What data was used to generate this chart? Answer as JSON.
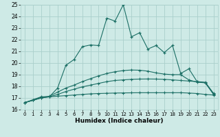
{
  "xlabel": "Humidex (Indice chaleur)",
  "xlim": [
    -0.5,
    23.5
  ],
  "ylim": [
    16,
    25
  ],
  "xticks": [
    0,
    1,
    2,
    3,
    4,
    5,
    6,
    7,
    8,
    9,
    10,
    11,
    12,
    13,
    14,
    15,
    16,
    17,
    18,
    19,
    20,
    21,
    22,
    23
  ],
  "yticks": [
    16,
    17,
    18,
    19,
    20,
    21,
    22,
    23,
    24,
    25
  ],
  "bg_color": "#ceeae6",
  "grid_color": "#aacfcb",
  "line_color": "#1a6e64",
  "line1_x": [
    0,
    1,
    2,
    3,
    4,
    5,
    6,
    7,
    8,
    9,
    10,
    11,
    12,
    13,
    14,
    15,
    16,
    17,
    18,
    19,
    20,
    21,
    22,
    23
  ],
  "line1_y": [
    16.6,
    16.8,
    17.0,
    17.1,
    17.15,
    17.2,
    17.25,
    17.3,
    17.35,
    17.38,
    17.4,
    17.42,
    17.43,
    17.44,
    17.45,
    17.45,
    17.45,
    17.45,
    17.45,
    17.45,
    17.42,
    17.38,
    17.3,
    17.25
  ],
  "line2_x": [
    0,
    1,
    2,
    3,
    4,
    5,
    6,
    7,
    8,
    9,
    10,
    11,
    12,
    13,
    14,
    15,
    16,
    17,
    18,
    19,
    20,
    21,
    22,
    23
  ],
  "line2_y": [
    16.6,
    16.8,
    17.0,
    17.1,
    17.3,
    17.55,
    17.75,
    17.95,
    18.1,
    18.25,
    18.4,
    18.5,
    18.55,
    18.6,
    18.62,
    18.63,
    18.62,
    18.6,
    18.55,
    18.5,
    18.45,
    18.4,
    18.35,
    17.4
  ],
  "line3_x": [
    0,
    1,
    2,
    3,
    4,
    5,
    6,
    7,
    8,
    9,
    10,
    11,
    12,
    13,
    14,
    15,
    16,
    17,
    18,
    19,
    20,
    21,
    22,
    23
  ],
  "line3_y": [
    16.6,
    16.8,
    17.05,
    17.15,
    17.5,
    17.85,
    18.1,
    18.4,
    18.65,
    18.9,
    19.1,
    19.25,
    19.35,
    19.4,
    19.38,
    19.3,
    19.15,
    19.05,
    19.0,
    19.0,
    18.55,
    18.35,
    18.3,
    17.35
  ],
  "line4_x": [
    0,
    2,
    3,
    4,
    5,
    6,
    7,
    8,
    9,
    10,
    11,
    12,
    13,
    14,
    15,
    16,
    17,
    18,
    19,
    20,
    21,
    22,
    23
  ],
  "line4_y": [
    16.6,
    17.1,
    17.1,
    17.85,
    19.8,
    20.3,
    21.4,
    21.55,
    21.5,
    23.85,
    23.6,
    25.0,
    22.25,
    22.6,
    21.2,
    21.5,
    20.9,
    21.5,
    19.1,
    19.5,
    18.4,
    18.3,
    17.3
  ]
}
